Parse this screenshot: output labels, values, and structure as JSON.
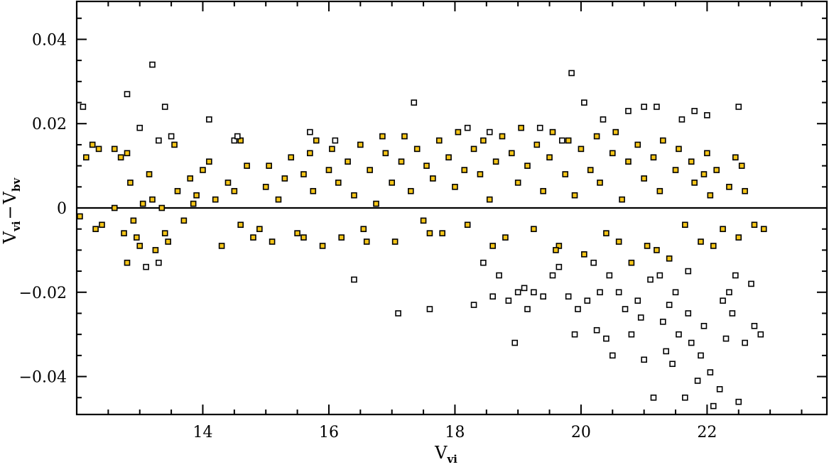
{
  "chart_data": {
    "type": "scatter",
    "xlabel": {
      "main": "V",
      "sub": "vi"
    },
    "ylabel": {
      "main": "V",
      "sub": "vi",
      "dash": "−",
      "main2": "V",
      "sub2": "bv"
    },
    "xlim": [
      12.0,
      23.9
    ],
    "ylim": [
      -0.049,
      0.049
    ],
    "x_ticks": [
      14,
      16,
      18,
      20,
      22
    ],
    "x_tick_labels": [
      "14",
      "16",
      "18",
      "20",
      "22"
    ],
    "x_minor_step": 0.5,
    "y_ticks": [
      -0.04,
      -0.02,
      0,
      0.02,
      0.04
    ],
    "y_tick_labels": [
      "−0.04",
      "−0.02",
      "0",
      "0.02",
      "0.04"
    ],
    "y_minor_step": 0.005,
    "reference_line_y": 0,
    "grid": false,
    "legend": "none",
    "series": [
      {
        "style": "filled",
        "color": "#f5c518",
        "edge_color": "#000000",
        "points": [
          [
            12.05,
            -0.002
          ],
          [
            12.15,
            0.012
          ],
          [
            12.25,
            0.015
          ],
          [
            12.35,
            0.014
          ],
          [
            12.3,
            -0.005
          ],
          [
            12.4,
            -0.004
          ],
          [
            12.6,
            0.0
          ],
          [
            12.6,
            0.014
          ],
          [
            12.7,
            0.012
          ],
          [
            12.75,
            -0.006
          ],
          [
            12.8,
            0.013
          ],
          [
            12.85,
            0.006
          ],
          [
            12.9,
            -0.003
          ],
          [
            12.95,
            -0.007
          ],
          [
            13.0,
            -0.009
          ],
          [
            13.05,
            0.001
          ],
          [
            13.15,
            0.008
          ],
          [
            13.2,
            0.002
          ],
          [
            13.25,
            -0.01
          ],
          [
            13.35,
            0.0
          ],
          [
            13.45,
            -0.008
          ],
          [
            13.55,
            0.015
          ],
          [
            13.6,
            0.004
          ],
          [
            13.7,
            -0.003
          ],
          [
            13.8,
            0.007
          ],
          [
            13.85,
            0.001
          ],
          [
            13.9,
            0.003
          ],
          [
            14.0,
            0.009
          ],
          [
            14.1,
            0.011
          ],
          [
            14.2,
            0.002
          ],
          [
            14.3,
            -0.009
          ],
          [
            14.4,
            0.006
          ],
          [
            14.5,
            0.004
          ],
          [
            14.6,
            0.016
          ],
          [
            14.7,
            0.01
          ],
          [
            14.8,
            -0.007
          ],
          [
            14.9,
            -0.005
          ],
          [
            15.0,
            0.005
          ],
          [
            15.05,
            0.01
          ],
          [
            15.1,
            -0.008
          ],
          [
            15.2,
            0.002
          ],
          [
            15.3,
            0.007
          ],
          [
            15.4,
            0.012
          ],
          [
            15.5,
            -0.006
          ],
          [
            15.6,
            0.008
          ],
          [
            15.7,
            0.013
          ],
          [
            15.75,
            0.004
          ],
          [
            15.8,
            0.016
          ],
          [
            15.9,
            -0.009
          ],
          [
            16.0,
            0.009
          ],
          [
            16.05,
            0.014
          ],
          [
            16.15,
            0.006
          ],
          [
            16.2,
            -0.007
          ],
          [
            16.3,
            0.011
          ],
          [
            16.4,
            0.003
          ],
          [
            16.5,
            0.015
          ],
          [
            16.55,
            -0.005
          ],
          [
            16.65,
            0.009
          ],
          [
            16.75,
            0.001
          ],
          [
            16.85,
            0.017
          ],
          [
            16.9,
            0.013
          ],
          [
            17.0,
            0.006
          ],
          [
            17.05,
            -0.008
          ],
          [
            17.15,
            0.011
          ],
          [
            17.2,
            0.017
          ],
          [
            17.3,
            0.004
          ],
          [
            17.4,
            0.014
          ],
          [
            17.5,
            -0.003
          ],
          [
            17.55,
            0.01
          ],
          [
            17.65,
            0.007
          ],
          [
            17.75,
            0.016
          ],
          [
            17.8,
            -0.006
          ],
          [
            17.9,
            0.012
          ],
          [
            18.0,
            0.005
          ],
          [
            18.05,
            0.018
          ],
          [
            18.15,
            0.009
          ],
          [
            18.2,
            -0.004
          ],
          [
            18.3,
            0.014
          ],
          [
            18.4,
            0.008
          ],
          [
            18.45,
            0.016
          ],
          [
            18.55,
            0.002
          ],
          [
            18.65,
            0.011
          ],
          [
            18.75,
            0.017
          ],
          [
            18.8,
            -0.007
          ],
          [
            18.9,
            0.013
          ],
          [
            19.0,
            0.006
          ],
          [
            19.05,
            0.019
          ],
          [
            19.15,
            0.01
          ],
          [
            19.25,
            -0.005
          ],
          [
            19.3,
            0.015
          ],
          [
            19.4,
            0.004
          ],
          [
            19.5,
            0.012
          ],
          [
            19.55,
            0.018
          ],
          [
            19.65,
            -0.009
          ],
          [
            19.75,
            0.008
          ],
          [
            19.8,
            0.016
          ],
          [
            19.9,
            0.003
          ],
          [
            20.0,
            0.014
          ],
          [
            20.05,
            -0.011
          ],
          [
            20.15,
            0.009
          ],
          [
            20.25,
            0.017
          ],
          [
            20.3,
            0.006
          ],
          [
            20.4,
            -0.006
          ],
          [
            20.5,
            0.013
          ],
          [
            20.55,
            0.018
          ],
          [
            20.65,
            0.002
          ],
          [
            20.75,
            0.011
          ],
          [
            20.8,
            -0.013
          ],
          [
            20.9,
            0.015
          ],
          [
            21.0,
            0.007
          ],
          [
            21.05,
            -0.009
          ],
          [
            21.15,
            0.012
          ],
          [
            21.25,
            0.004
          ],
          [
            21.3,
            0.016
          ],
          [
            21.4,
            -0.012
          ],
          [
            21.5,
            0.009
          ],
          [
            21.55,
            0.014
          ],
          [
            21.65,
            -0.004
          ],
          [
            21.75,
            0.011
          ],
          [
            21.8,
            0.006
          ],
          [
            21.9,
            -0.008
          ],
          [
            22.0,
            0.013
          ],
          [
            22.05,
            0.003
          ],
          [
            22.15,
            0.009
          ],
          [
            22.25,
            -0.005
          ],
          [
            22.35,
            0.005
          ],
          [
            22.45,
            0.012
          ],
          [
            22.5,
            -0.007
          ],
          [
            22.6,
            0.004
          ],
          [
            22.75,
            -0.004
          ],
          [
            22.9,
            -0.005
          ],
          [
            22.55,
            0.01
          ],
          [
            22.1,
            -0.009
          ],
          [
            21.95,
            0.008
          ],
          [
            21.2,
            -0.01
          ],
          [
            20.6,
            -0.008
          ],
          [
            19.6,
            -0.01
          ],
          [
            18.6,
            -0.009
          ],
          [
            17.6,
            -0.006
          ],
          [
            16.6,
            -0.008
          ],
          [
            15.6,
            -0.007
          ],
          [
            14.6,
            -0.004
          ],
          [
            13.4,
            -0.006
          ],
          [
            12.8,
            -0.013
          ]
        ]
      },
      {
        "style": "open",
        "color": "#ffffff",
        "edge_color": "#000000",
        "points": [
          [
            12.1,
            0.024
          ],
          [
            12.8,
            0.027
          ],
          [
            13.0,
            0.019
          ],
          [
            13.2,
            0.034
          ],
          [
            13.3,
            0.016
          ],
          [
            13.4,
            0.024
          ],
          [
            13.5,
            0.017
          ],
          [
            13.1,
            -0.014
          ],
          [
            13.3,
            -0.013
          ],
          [
            14.1,
            0.021
          ],
          [
            14.5,
            0.016
          ],
          [
            14.55,
            0.017
          ],
          [
            15.7,
            0.018
          ],
          [
            16.1,
            0.016
          ],
          [
            16.4,
            -0.017
          ],
          [
            17.1,
            -0.025
          ],
          [
            17.35,
            0.025
          ],
          [
            17.6,
            -0.024
          ],
          [
            18.2,
            0.019
          ],
          [
            18.3,
            -0.023
          ],
          [
            18.45,
            -0.013
          ],
          [
            18.55,
            0.018
          ],
          [
            18.6,
            -0.021
          ],
          [
            18.7,
            -0.016
          ],
          [
            18.85,
            -0.022
          ],
          [
            18.95,
            -0.032
          ],
          [
            19.0,
            -0.02
          ],
          [
            19.1,
            -0.019
          ],
          [
            19.15,
            -0.024
          ],
          [
            19.25,
            -0.02
          ],
          [
            19.35,
            0.019
          ],
          [
            19.4,
            -0.021
          ],
          [
            19.55,
            -0.016
          ],
          [
            19.65,
            -0.014
          ],
          [
            19.8,
            -0.021
          ],
          [
            19.85,
            0.032
          ],
          [
            19.9,
            -0.03
          ],
          [
            19.95,
            -0.024
          ],
          [
            20.05,
            0.025
          ],
          [
            20.1,
            -0.022
          ],
          [
            20.2,
            -0.013
          ],
          [
            20.25,
            -0.029
          ],
          [
            20.35,
            0.021
          ],
          [
            20.4,
            -0.031
          ],
          [
            20.45,
            -0.016
          ],
          [
            20.5,
            -0.035
          ],
          [
            20.6,
            -0.02
          ],
          [
            20.7,
            -0.024
          ],
          [
            20.8,
            -0.03
          ],
          [
            20.9,
            -0.022
          ],
          [
            21.0,
            0.024
          ],
          [
            21.0,
            -0.036
          ],
          [
            21.1,
            -0.017
          ],
          [
            21.15,
            -0.045
          ],
          [
            21.2,
            0.024
          ],
          [
            21.3,
            -0.027
          ],
          [
            21.35,
            -0.034
          ],
          [
            21.45,
            -0.037
          ],
          [
            21.5,
            -0.02
          ],
          [
            21.55,
            -0.03
          ],
          [
            21.6,
            0.021
          ],
          [
            21.65,
            -0.045
          ],
          [
            21.7,
            -0.025
          ],
          [
            21.75,
            -0.032
          ],
          [
            21.8,
            0.023
          ],
          [
            21.85,
            -0.041
          ],
          [
            21.9,
            -0.035
          ],
          [
            21.95,
            -0.028
          ],
          [
            22.0,
            0.022
          ],
          [
            22.05,
            -0.039
          ],
          [
            22.1,
            -0.047
          ],
          [
            22.2,
            -0.043
          ],
          [
            22.25,
            -0.022
          ],
          [
            22.3,
            -0.031
          ],
          [
            22.35,
            -0.02
          ],
          [
            22.4,
            -0.025
          ],
          [
            22.45,
            -0.016
          ],
          [
            22.5,
            0.024
          ],
          [
            22.5,
            -0.046
          ],
          [
            22.6,
            -0.032
          ],
          [
            22.7,
            -0.018
          ],
          [
            22.75,
            -0.028
          ],
          [
            22.85,
            -0.03
          ],
          [
            20.3,
            -0.02
          ],
          [
            21.25,
            -0.016
          ],
          [
            20.95,
            -0.026
          ],
          [
            19.7,
            0.016
          ],
          [
            20.75,
            0.023
          ],
          [
            21.4,
            -0.023
          ],
          [
            21.7,
            -0.015
          ]
        ]
      }
    ]
  }
}
